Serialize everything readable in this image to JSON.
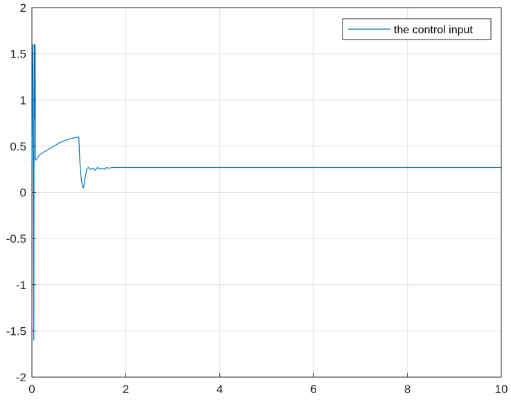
{
  "chart_data": {
    "type": "line",
    "title": "",
    "xlabel": "",
    "ylabel": "",
    "xlim": [
      0,
      10
    ],
    "ylim": [
      -2,
      2
    ],
    "x_ticks": [
      "0",
      "2",
      "4",
      "6",
      "8",
      "10"
    ],
    "y_ticks": [
      "2",
      "1.5",
      "1",
      "0.5",
      "0",
      "-0.5",
      "-1",
      "-1.5",
      "-2"
    ],
    "grid": true,
    "legend_position": "top-right",
    "series": [
      {
        "name": "the control input",
        "color": "#0072BD",
        "x": [
          0,
          0.02,
          0.03,
          0.04,
          0.05,
          0.06,
          0.07,
          0.075,
          0.085,
          0.1,
          0.15,
          0.2,
          0.3,
          0.4,
          0.5,
          0.6,
          0.7,
          0.8,
          0.9,
          1.0,
          1.02,
          1.05,
          1.08,
          1.1,
          1.13,
          1.17,
          1.2,
          1.25,
          1.3,
          1.35,
          1.4,
          1.45,
          1.5,
          1.55,
          1.6,
          1.65,
          1.7,
          2.0,
          4.0,
          6.0,
          8.0,
          10.0
        ],
        "y": [
          0.3,
          1.6,
          0.2,
          -1.6,
          1.6,
          0.8,
          1.6,
          0.35,
          0.35,
          0.36,
          0.4,
          0.42,
          0.45,
          0.48,
          0.51,
          0.54,
          0.56,
          0.58,
          0.59,
          0.6,
          0.35,
          0.15,
          0.06,
          0.05,
          0.15,
          0.25,
          0.27,
          0.25,
          0.26,
          0.24,
          0.27,
          0.25,
          0.26,
          0.25,
          0.27,
          0.26,
          0.27,
          0.27,
          0.27,
          0.27,
          0.27,
          0.27
        ]
      }
    ]
  }
}
